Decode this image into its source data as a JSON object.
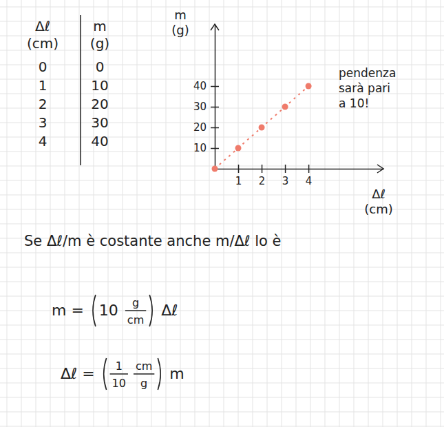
{
  "table": {
    "headers": [
      [
        "Δℓ",
        "(cm)"
      ],
      [
        "m",
        "(g)"
      ]
    ],
    "rows": [
      [
        0,
        0
      ],
      [
        1,
        10
      ],
      [
        2,
        20
      ],
      [
        3,
        30
      ],
      [
        4,
        40
      ]
    ]
  },
  "chart_data": {
    "type": "scatter",
    "x": [
      0,
      1,
      2,
      3,
      4
    ],
    "values": [
      0,
      10,
      20,
      30,
      40
    ],
    "color": "#ef7b6b",
    "marker": "circle",
    "line_style": "dotted",
    "xlim": [
      0,
      7.2
    ],
    "ylim": [
      0,
      70
    ],
    "xticks": [
      1,
      2,
      3,
      4
    ],
    "yticks": [
      10,
      20,
      30,
      40
    ],
    "x_label": [
      "Δℓ",
      "(cm)"
    ],
    "y_label": [
      "m",
      "(g)"
    ],
    "annotation": [
      "pendenza",
      "sarà pari",
      "a 10!"
    ]
  },
  "statement": "Se Δℓ/m è costante anche m/Δℓ lo è",
  "formulas": [
    {
      "tokens": [
        {
          "text": "m ="
        },
        {
          "paren": [
            {
              "text": "10"
            },
            {
              "num": "g",
              "den": "cm"
            }
          ]
        },
        {
          "text": "Δℓ"
        }
      ]
    },
    {
      "tokens": [
        {
          "text": "Δℓ ="
        },
        {
          "paren": [
            {
              "num": "1",
              "den": "10"
            },
            {
              "num": "cm",
              "den": "g"
            }
          ]
        },
        {
          "text": "m"
        }
      ]
    }
  ]
}
